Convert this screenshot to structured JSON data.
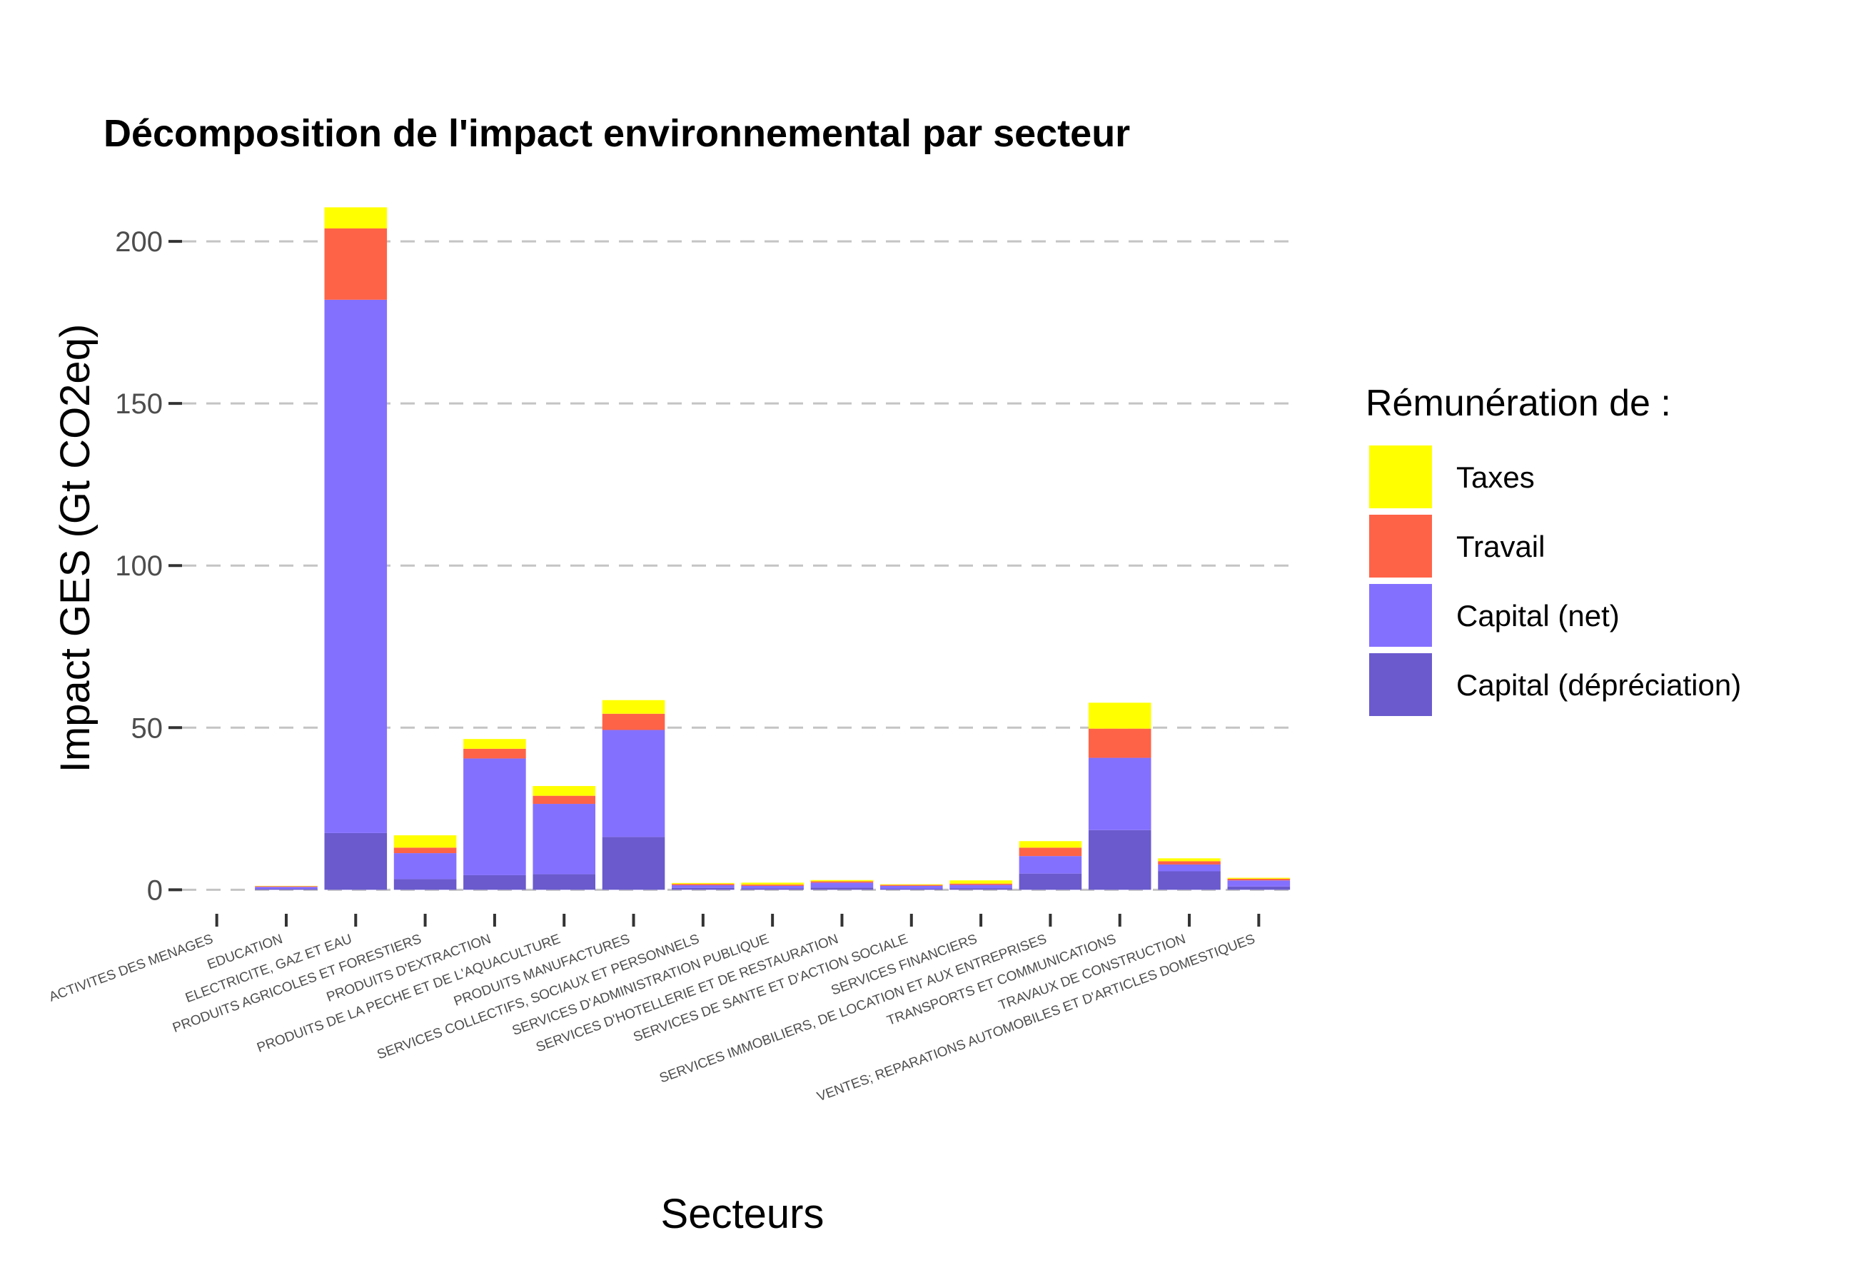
{
  "chart_data": {
    "type": "bar",
    "stacked": true,
    "title": "Décomposition de l'impact environnemental par secteur",
    "xlabel": "Secteurs",
    "ylabel": "Impact GES (Gt CO2eq)",
    "ylim": [
      -3,
      215
    ],
    "yticks": [
      0,
      50,
      100,
      150,
      200
    ],
    "grid": "horizontal dashed",
    "categories": [
      "ACTIVITES DES MENAGES",
      "EDUCATION",
      "ELECTRICITE, GAZ ET EAU",
      "PRODUITS AGRICOLES ET FORESTIERS",
      "PRODUITS D'EXTRACTION",
      "PRODUITS DE LA PECHE ET DE L'AQUACULTURE",
      "PRODUITS MANUFACTURES",
      "SERVICES COLLECTIFS, SOCIAUX ET PERSONNELS",
      "SERVICES D'ADMINISTRATION PUBLIQUE",
      "SERVICES D'HOTELLERIE ET DE RESTAURATION",
      "SERVICES DE SANTE ET D'ACTION SOCIALE",
      "SERVICES FINANCIERS",
      "SERVICES IMMOBILIERS, DE LOCATION ET AUX ENTREPRISES",
      "TRANSPORTS ET COMMUNICATIONS",
      "TRAVAUX DE CONSTRUCTION",
      "VENTES; REPARATIONS AUTOMOBILES ET D'ARTICLES DOMESTIQUES"
    ],
    "series": [
      {
        "name": "Capital (dépréciation)",
        "color": "#6a5acd",
        "values": [
          0,
          0.3,
          17.5,
          3.3,
          4.5,
          4.8,
          16.3,
          0.6,
          0.4,
          0.7,
          0.3,
          0.5,
          5.0,
          18.4,
          5.7,
          1.0
        ]
      },
      {
        "name": "Capital (net)",
        "color": "#8470ff",
        "values": [
          0,
          0.6,
          164.5,
          8.0,
          36.0,
          21.7,
          33.0,
          0.8,
          0.8,
          1.5,
          0.9,
          1.0,
          5.4,
          22.3,
          2.1,
          1.9
        ]
      },
      {
        "name": "Travail",
        "color": "#ff6347",
        "values": [
          0,
          0.2,
          22.0,
          1.7,
          3.0,
          2.5,
          5.0,
          0.4,
          0.4,
          0.4,
          0.3,
          0.4,
          2.6,
          9.0,
          1.0,
          0.5
        ]
      },
      {
        "name": "Taxes",
        "color": "#ffff00",
        "values": [
          0,
          0.1,
          6.5,
          3.8,
          3.0,
          3.0,
          4.2,
          0.3,
          0.6,
          0.4,
          0.2,
          1.0,
          2.0,
          8.0,
          0.9,
          0.3
        ]
      }
    ],
    "legend": {
      "title": "Rémunération de :",
      "position": "right",
      "order": [
        "Taxes",
        "Travail",
        "Capital (net)",
        "Capital (dépréciation)"
      ]
    }
  }
}
